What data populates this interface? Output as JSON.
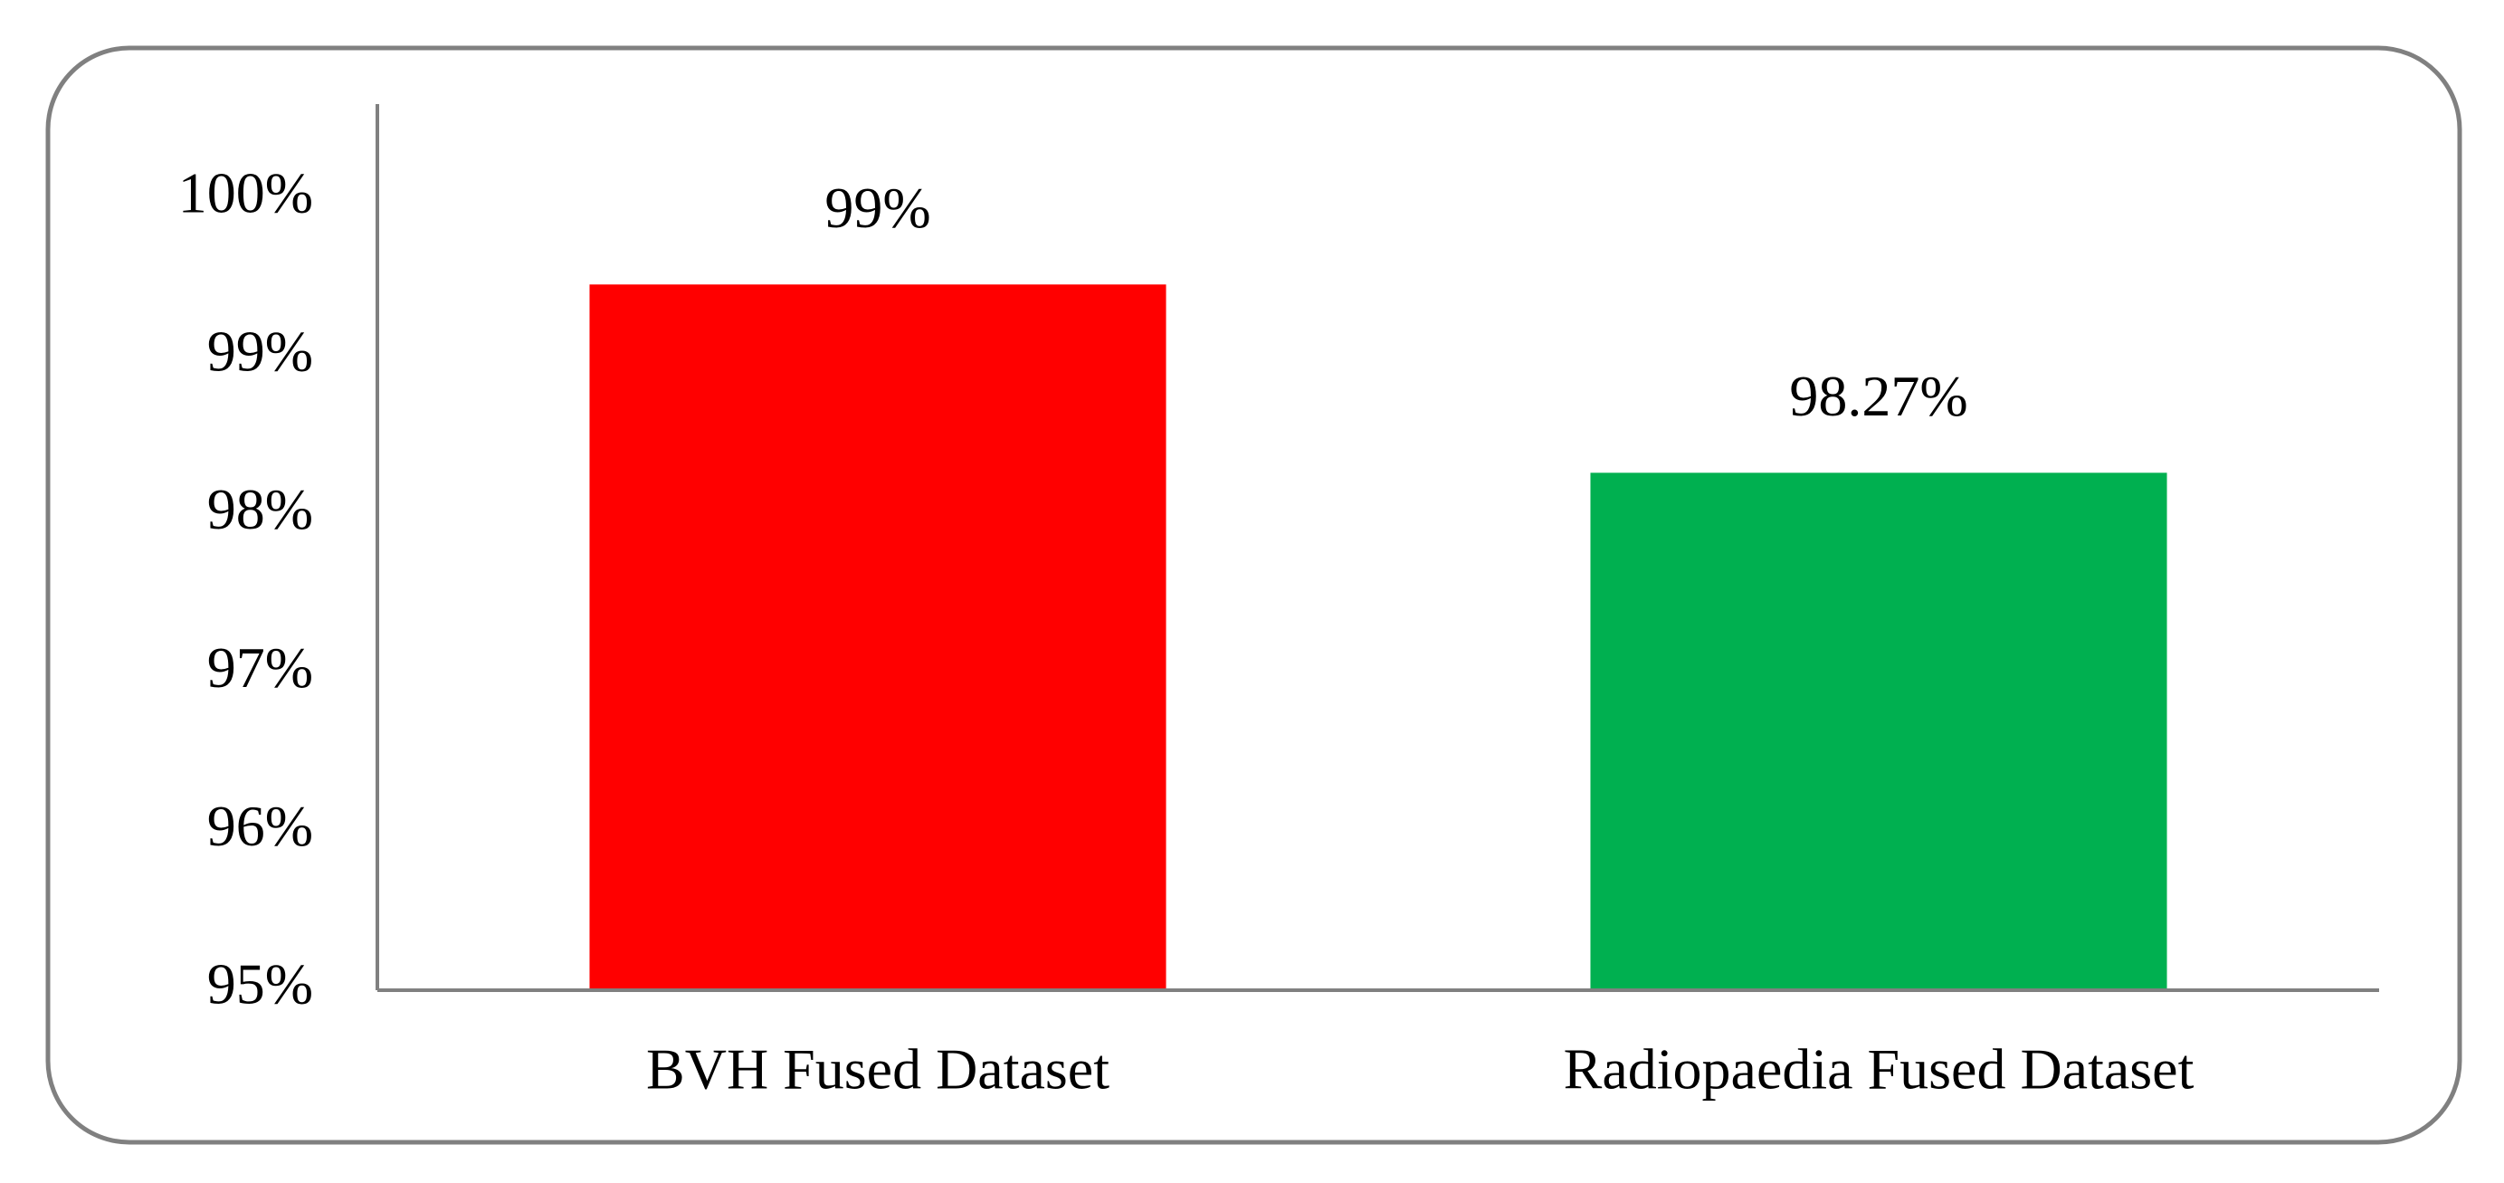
{
  "chart_data": {
    "type": "bar",
    "categories": [
      "BVH Fused Dataset",
      "Radiopaedia Fused Dataset"
    ],
    "values": [
      99.46,
      98.27
    ],
    "value_labels": [
      "99%",
      "98.27%"
    ],
    "colors": [
      "#ff0000",
      "#00b050"
    ],
    "ylim": [
      95,
      100.6
    ],
    "yticks": [
      {
        "value": 95,
        "label": "95%"
      },
      {
        "value": 96,
        "label": "96%"
      },
      {
        "value": 97,
        "label": "97%"
      },
      {
        "value": 98,
        "label": "98%"
      },
      {
        "value": 99,
        "label": "99%"
      },
      {
        "value": 100,
        "label": "100%"
      }
    ],
    "grid": false
  }
}
